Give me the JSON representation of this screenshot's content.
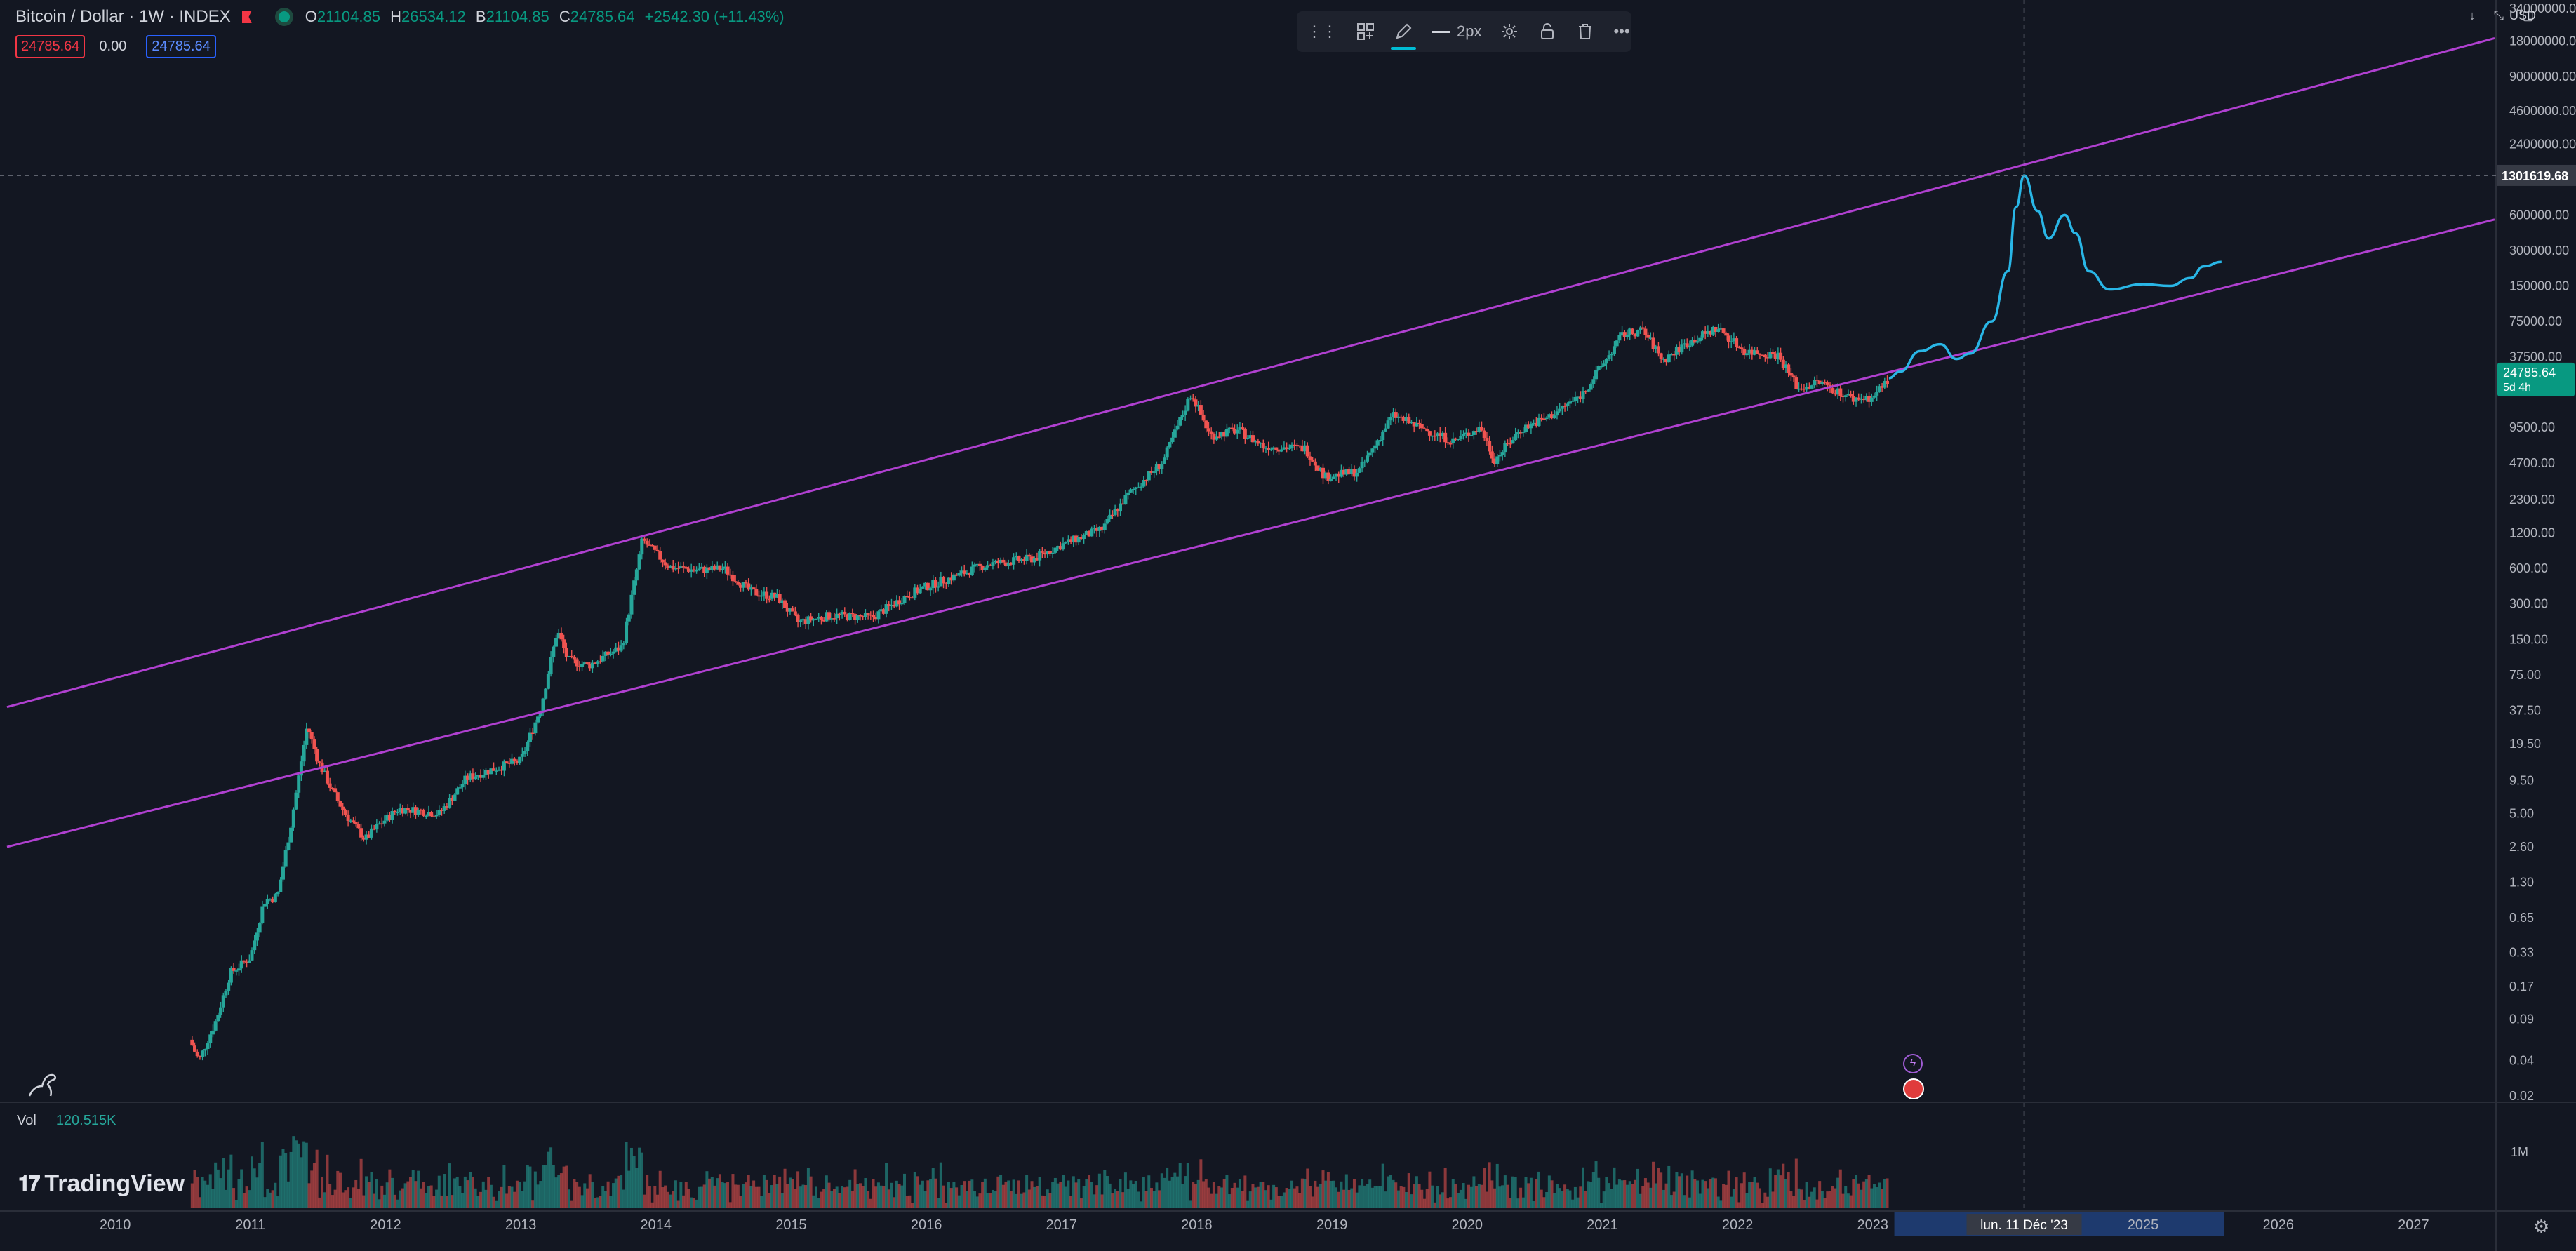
{
  "header": {
    "symbol": "Bitcoin / Dollar · 1W · INDEX",
    "o_label": "O",
    "o_value": "21104.85",
    "h_label": "H",
    "h_value": "26534.12",
    "b_label": "B",
    "b_value": "21104.85",
    "c_label": "C",
    "c_value": "24785.64",
    "change": "+2542.30 (+11.43%)"
  },
  "badges": {
    "bid": "24785.64",
    "spread": "0.00",
    "ask": "24785.64"
  },
  "toolbar": {
    "width_label": "2px"
  },
  "currency": "USD",
  "volume": {
    "label": "Vol",
    "value": "120.515K",
    "axis_label": "1M"
  },
  "brand": {
    "name": "TradingView"
  },
  "colors": {
    "background": "#131722",
    "channel": "#b040d0",
    "projection": "#29b6e6",
    "up": "#26a69a",
    "down": "#ef5350",
    "price_tag": "#089981",
    "time_highlight": "#1e3a6e"
  },
  "chart_data": {
    "type": "candlestick",
    "scale": "log",
    "timeframe": "1W",
    "x_range": [
      2009.2,
      2027.6
    ],
    "ylim": [
      0.02,
      34000000
    ],
    "y_ticks": [
      "34000000.00",
      "18000000.00",
      "9000000.00",
      "4600000.00",
      "2400000.00",
      "600000.00",
      "300000.00",
      "150000.00",
      "75000.00",
      "37500.00",
      "9500.00",
      "4700.00",
      "2300.00",
      "1200.00",
      "600.00",
      "300.00",
      "150.00",
      "75.00",
      "37.50",
      "19.50",
      "9.50",
      "5.00",
      "2.60",
      "1.30",
      "0.65",
      "0.33",
      "0.17",
      "0.09",
      "0.04",
      "0.02"
    ],
    "x_ticks": [
      "2010",
      "2011",
      "2012",
      "2013",
      "2014",
      "2015",
      "2016",
      "2017",
      "2018",
      "2019",
      "2020",
      "2021",
      "2022",
      "2023",
      "2025",
      "2026",
      "2027"
    ],
    "price_anchors": [
      [
        2010.55,
        0.06
      ],
      [
        2010.62,
        0.04
      ],
      [
        2010.75,
        0.09
      ],
      [
        2010.85,
        0.22
      ],
      [
        2011.0,
        0.3
      ],
      [
        2011.1,
        0.9
      ],
      [
        2011.2,
        1.0
      ],
      [
        2011.3,
        4.0
      ],
      [
        2011.42,
        28.0
      ],
      [
        2011.5,
        14.0
      ],
      [
        2011.6,
        8.0
      ],
      [
        2011.7,
        5.0
      ],
      [
        2011.85,
        3.0
      ],
      [
        2011.95,
        4.0
      ],
      [
        2012.1,
        5.5
      ],
      [
        2012.4,
        5.0
      ],
      [
        2012.6,
        10.0
      ],
      [
        2012.9,
        13.0
      ],
      [
        2013.0,
        14.0
      ],
      [
        2013.15,
        40.0
      ],
      [
        2013.27,
        180.0
      ],
      [
        2013.35,
        100.0
      ],
      [
        2013.5,
        90.0
      ],
      [
        2013.75,
        130.0
      ],
      [
        2013.9,
        1050.0
      ],
      [
        2014.0,
        800.0
      ],
      [
        2014.1,
        620.0
      ],
      [
        2014.3,
        580.0
      ],
      [
        2014.5,
        600.0
      ],
      [
        2014.7,
        380.0
      ],
      [
        2014.9,
        340.0
      ],
      [
        2015.05,
        210.0
      ],
      [
        2015.3,
        240.0
      ],
      [
        2015.6,
        230.0
      ],
      [
        2015.85,
        350.0
      ],
      [
        2016.0,
        420.0
      ],
      [
        2016.45,
        650.0
      ],
      [
        2016.8,
        730.0
      ],
      [
        2017.0,
        950.0
      ],
      [
        2017.3,
        1300.0
      ],
      [
        2017.5,
        2600.0
      ],
      [
        2017.75,
        4800.0
      ],
      [
        2017.96,
        18500.0
      ],
      [
        2018.1,
        8000.0
      ],
      [
        2018.3,
        9000.0
      ],
      [
        2018.5,
        6500.0
      ],
      [
        2018.8,
        6300.0
      ],
      [
        2018.95,
        3600.0
      ],
      [
        2019.2,
        4000.0
      ],
      [
        2019.45,
        12000.0
      ],
      [
        2019.6,
        10000.0
      ],
      [
        2019.9,
        7200.0
      ],
      [
        2020.1,
        9500.0
      ],
      [
        2020.2,
        5000.0
      ],
      [
        2020.4,
        9200.0
      ],
      [
        2020.6,
        11500.0
      ],
      [
        2020.85,
        18000.0
      ],
      [
        2021.0,
        32000.0
      ],
      [
        2021.15,
        58000.0
      ],
      [
        2021.3,
        63000.0
      ],
      [
        2021.45,
        35000.0
      ],
      [
        2021.6,
        47000.0
      ],
      [
        2021.85,
        66000.0
      ],
      [
        2022.05,
        42000.0
      ],
      [
        2022.3,
        39000.0
      ],
      [
        2022.45,
        20000.0
      ],
      [
        2022.6,
        23000.0
      ],
      [
        2022.85,
        16500.0
      ],
      [
        2023.0,
        17000.0
      ],
      [
        2023.12,
        24785.64
      ]
    ],
    "series": [
      {
        "name": "",
        "kind": "channel-upper",
        "points": [
          [
            2009.2,
            40.0
          ],
          [
            2027.6,
            19000000.0
          ]
        ]
      },
      {
        "name": "",
        "kind": "channel-lower",
        "points": [
          [
            2009.2,
            2.6
          ],
          [
            2027.6,
            550000.0
          ]
        ]
      },
      {
        "name": "",
        "kind": "projection",
        "points": [
          [
            2023.12,
            24785.64
          ],
          [
            2023.2,
            28000.0
          ],
          [
            2023.35,
            42000.0
          ],
          [
            2023.5,
            48000.0
          ],
          [
            2023.62,
            36000.0
          ],
          [
            2023.72,
            40000.0
          ],
          [
            2023.88,
            75000.0
          ],
          [
            2024.0,
            200000.0
          ],
          [
            2024.06,
            700000.0
          ],
          [
            2024.12,
            1301619.68
          ],
          [
            2024.22,
            650000.0
          ],
          [
            2024.3,
            380000.0
          ],
          [
            2024.42,
            600000.0
          ],
          [
            2024.5,
            420000.0
          ],
          [
            2024.6,
            200000.0
          ],
          [
            2024.75,
            140000.0
          ],
          [
            2025.0,
            155000.0
          ],
          [
            2025.2,
            150000.0
          ],
          [
            2025.35,
            175000.0
          ],
          [
            2025.45,
            220000.0
          ],
          [
            2025.58,
            240000.0
          ]
        ]
      }
    ],
    "crosshair": {
      "x_label": "lun. 11 Déc '23",
      "y_label": "1301619.68"
    },
    "last_price": {
      "value": "24785.64",
      "countdown": "5d 4h"
    },
    "volume_ref": "1M",
    "grid": false
  }
}
